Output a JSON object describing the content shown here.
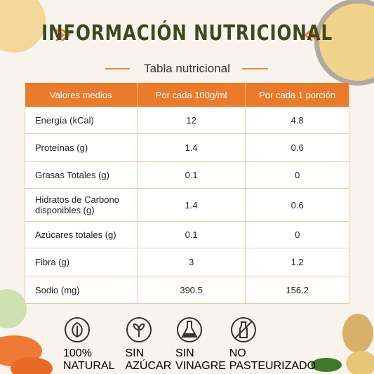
{
  "header": {
    "title": "INFORMACIÓN NUTRICIONAL",
    "subtitle": "Tabla nutricional"
  },
  "table": {
    "columns": [
      "Valores medios",
      "Por cada 100g/ml",
      "Por cada 1 porción"
    ],
    "rows": [
      [
        "Energía (kCal)",
        "12",
        "4.8"
      ],
      [
        "Proteínas (g)",
        "1.4",
        "0.6"
      ],
      [
        "Grasas Totales (g)",
        "0.1",
        "0"
      ],
      [
        "Hidratos de Carbono disponibles (g)",
        "1.4",
        "0.6"
      ],
      [
        "Azúcares totales (g)",
        "0.1",
        "0"
      ],
      [
        "Fibra (g)",
        "3",
        "1.2"
      ],
      [
        "Sodio (mg)",
        "390.5",
        "156.2"
      ]
    ]
  },
  "badges": [
    "100% NATURAL",
    "SIN AZÚCAR",
    "SIN VINAGRE",
    "NO PASTEURIZADO"
  ]
}
